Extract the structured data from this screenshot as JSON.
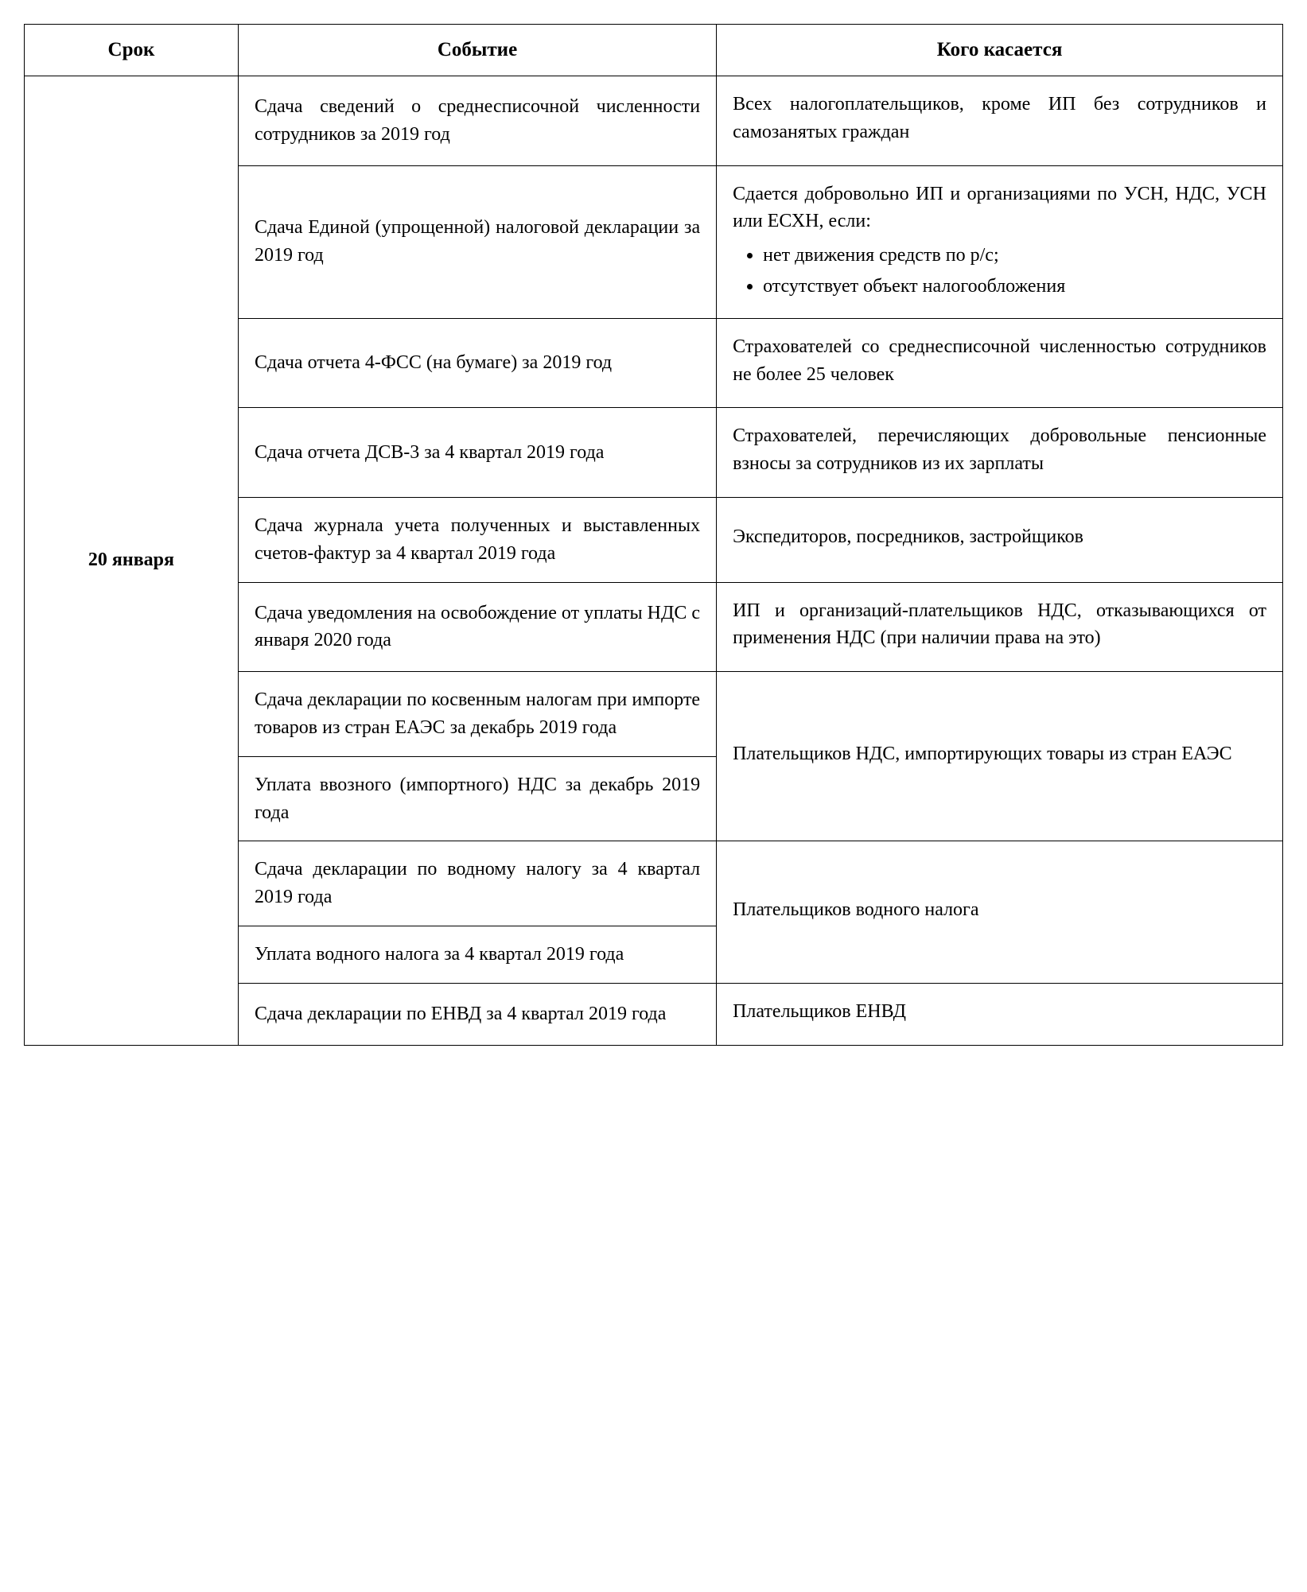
{
  "table": {
    "columns": [
      "Срок",
      "Событие",
      "Кого касается"
    ],
    "column_widths_pct": [
      17,
      38,
      45
    ],
    "border_color": "#000000",
    "background_color": "#ffffff",
    "font_family": "Times New Roman",
    "header_fontsize_pt": 18,
    "body_fontsize_pt": 17,
    "line_height": 1.45,
    "date_cell": {
      "label": "20 января",
      "rowspan": 11,
      "bold": true
    },
    "rows": [
      {
        "event": "Сдача сведений о среднесписочной численности сотрудников за 2019 год",
        "who": {
          "lead": "Всех налогоплательщиков, кроме ИП без сотрудников и самозанятых граждан"
        }
      },
      {
        "event": "Сдача Единой (упрощенной) налоговой декларации за 2019 год",
        "who": {
          "lead": "Сдается добровольно ИП и организациями по УСН, НДС, УСН или ЕСХН, если:",
          "bullets": [
            "нет движения средств по р/с;",
            "отсутствует объект налогообложения"
          ]
        }
      },
      {
        "event": "Сдача отчета 4-ФСС (на бумаге) за 2019 год",
        "who": {
          "lead": "Страхователей со среднесписочной численностью сотрудников не более 25 человек"
        }
      },
      {
        "event": "Сдача отчета ДСВ-3 за 4 квартал 2019 года",
        "who": {
          "lead": "Страхователей, перечисляющих добровольные пенсионные взносы за сотрудников из их зарплаты"
        }
      },
      {
        "event": "Сдача журнала учета полученных и выставленных счетов-фактур за 4 квартал 2019 года",
        "who": {
          "lead": "Экспедиторов, посредников, застройщиков"
        }
      },
      {
        "event": "Сдача уведомления на освобождение от уплаты НДС с января 2020 года",
        "who": {
          "lead": "ИП и организаций-плательщиков НДС, отказывающихся от применения НДС (при наличии права на это)"
        }
      },
      {
        "event": "Сдача декларации по косвенным налогам при импорте товаров из стран ЕАЭС за декабрь 2019 года",
        "who": {
          "lead": "Плательщиков НДС, импортирующих товары из стран ЕАЭС",
          "rowspan": 2
        }
      },
      {
        "event": "Уплата ввозного (импортного) НДС за декабрь 2019 года"
      },
      {
        "event": "Сдача декларации по водному налогу за 4 квартал 2019 года",
        "who": {
          "lead": "Плательщиков водного налога",
          "rowspan": 2
        }
      },
      {
        "event": "Уплата водного налога за 4 квартал 2019 года"
      },
      {
        "event": "Сдача декларации по ЕНВД за 4 квартал 2019 года",
        "who": {
          "lead": "Плательщиков ЕНВД"
        }
      }
    ]
  }
}
